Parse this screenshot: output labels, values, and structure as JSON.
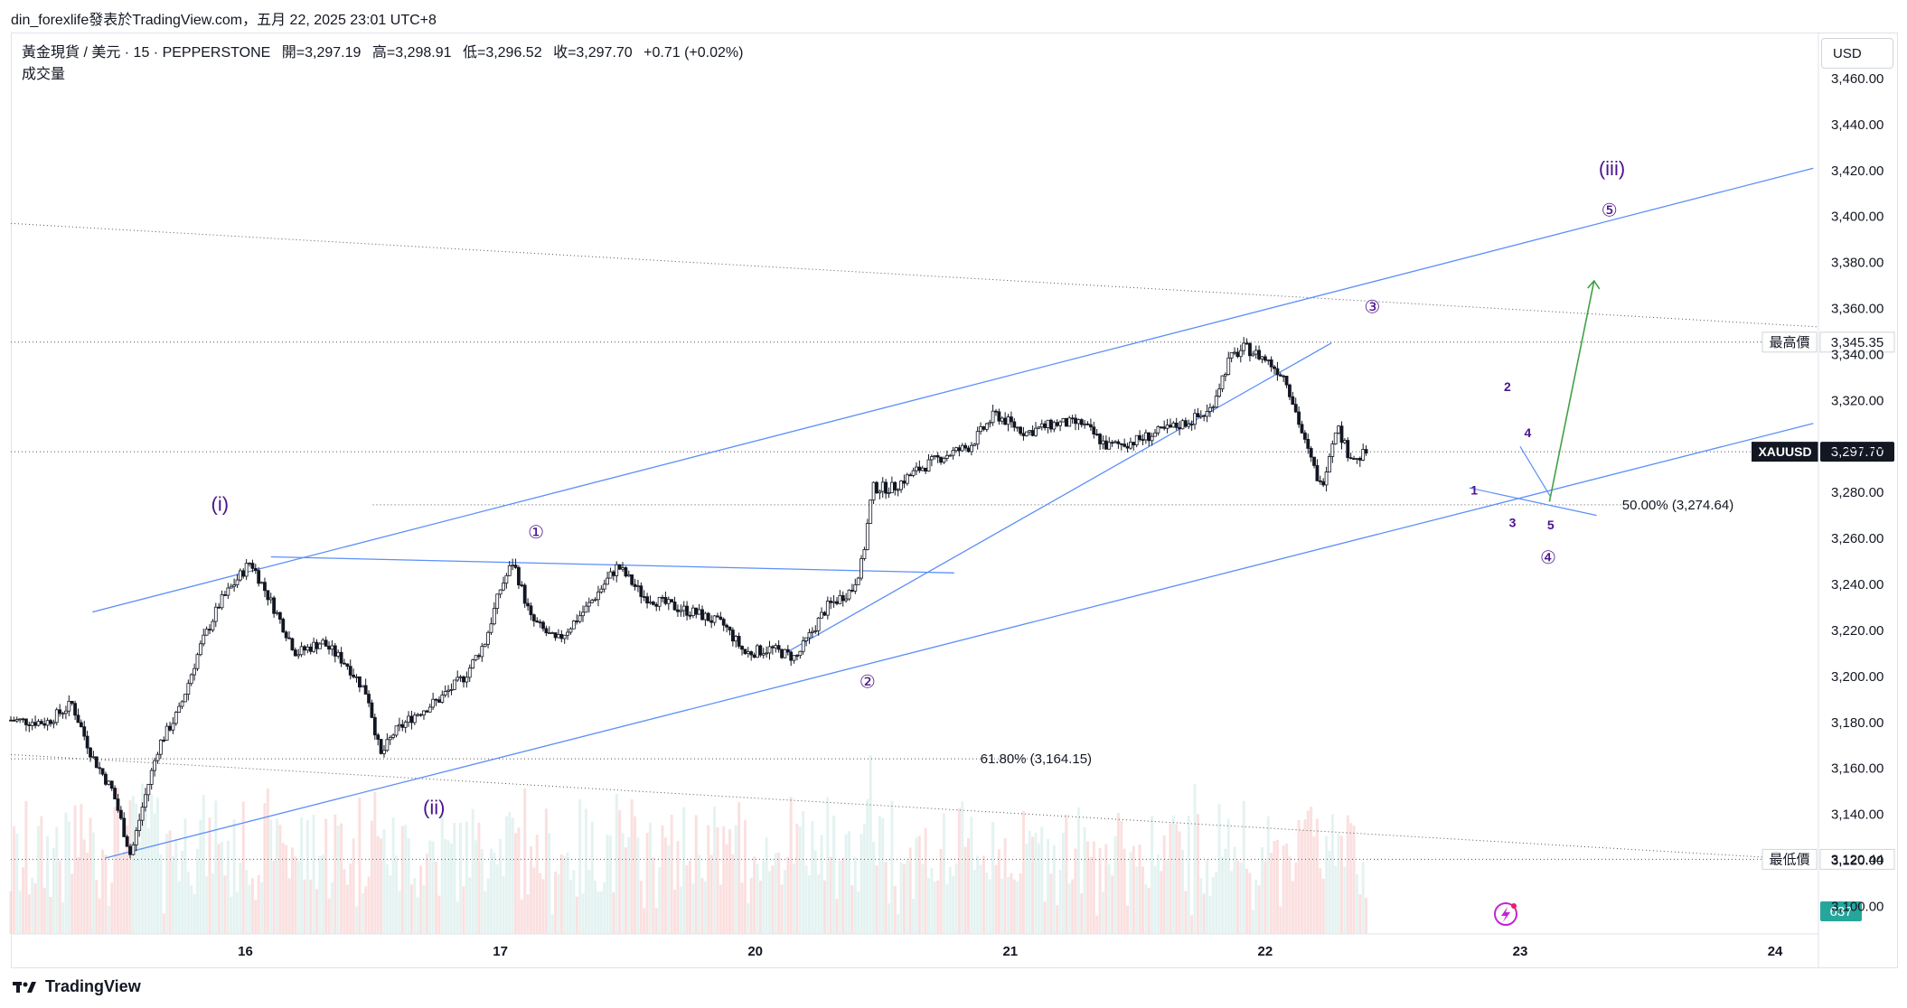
{
  "header": {
    "attribution": "din_forexlife發表於TradingView.com，五月 22, 2025 23:01 UTC+8"
  },
  "legend": {
    "symbol": "黃金現貨 / 美元 · 15 · PEPPERSTONE",
    "open": "開=3,297.19",
    "high": "高=3,298.91",
    "low": "低=3,296.52",
    "close": "收=3,297.70",
    "change": "+0.71 (+0.02%)",
    "volume_label": "成交量"
  },
  "currency": "USD",
  "footer": {
    "brand": "TradingView"
  },
  "colors": {
    "up": "#26a69a",
    "down": "#131722",
    "trendline": "#5b8ff9",
    "wave_label": "#4a148c",
    "target_arrow": "#43a047",
    "volume": "#f7c6c6"
  },
  "chart_data": {
    "type": "candlestick",
    "title": "黃金現貨 / 美元 · 15 · PEPPERSTONE",
    "ylim": [
      3088,
      3480
    ],
    "y_ticks": [
      3100,
      3120,
      3140,
      3160,
      3180,
      3200,
      3220,
      3240,
      3260,
      3280,
      3300,
      3320,
      3340,
      3360,
      3380,
      3400,
      3420,
      3440,
      3460
    ],
    "x_ticks": [
      "16",
      "17",
      "20",
      "21",
      "22",
      "23",
      "24"
    ],
    "x_tick_positions": [
      0.5,
      1.5,
      2.5,
      3.5,
      4.5,
      5.5,
      6.5
    ],
    "xlim": [
      -0.42,
      6.67
    ],
    "price_path": [
      [
        -0.42,
        3181
      ],
      [
        -0.28,
        3180
      ],
      [
        -0.18,
        3188
      ],
      [
        -0.1,
        3165
      ],
      [
        -0.02,
        3150
      ],
      [
        0.05,
        3122
      ],
      [
        0.1,
        3145
      ],
      [
        0.16,
        3170
      ],
      [
        0.24,
        3185
      ],
      [
        0.32,
        3212
      ],
      [
        0.4,
        3232
      ],
      [
        0.52,
        3250
      ],
      [
        0.62,
        3228
      ],
      [
        0.7,
        3210
      ],
      [
        0.8,
        3215
      ],
      [
        0.9,
        3205
      ],
      [
        0.98,
        3192
      ],
      [
        1.03,
        3165
      ],
      [
        1.08,
        3175
      ],
      [
        1.16,
        3183
      ],
      [
        1.26,
        3190
      ],
      [
        1.36,
        3200
      ],
      [
        1.44,
        3215
      ],
      [
        1.5,
        3238
      ],
      [
        1.55,
        3250
      ],
      [
        1.62,
        3225
      ],
      [
        1.72,
        3215
      ],
      [
        1.84,
        3230
      ],
      [
        1.96,
        3248
      ],
      [
        2.06,
        3235
      ],
      [
        2.16,
        3231
      ],
      [
        2.28,
        3227
      ],
      [
        2.38,
        3222
      ],
      [
        2.46,
        3210
      ],
      [
        2.56,
        3212
      ],
      [
        2.66,
        3208
      ],
      [
        2.78,
        3230
      ],
      [
        2.88,
        3238
      ],
      [
        2.92,
        3250
      ],
      [
        2.96,
        3282
      ],
      [
        3.04,
        3282
      ],
      [
        3.14,
        3290
      ],
      [
        3.24,
        3296
      ],
      [
        3.34,
        3300
      ],
      [
        3.44,
        3314
      ],
      [
        3.56,
        3306
      ],
      [
        3.68,
        3310
      ],
      [
        3.78,
        3310
      ],
      [
        3.88,
        3300
      ],
      [
        3.98,
        3302
      ],
      [
        4.08,
        3306
      ],
      [
        4.18,
        3310
      ],
      [
        4.28,
        3315
      ],
      [
        4.36,
        3338
      ],
      [
        4.42,
        3343
      ],
      [
        4.5,
        3338
      ],
      [
        4.58,
        3330
      ],
      [
        4.66,
        3300
      ],
      [
        4.72,
        3282
      ],
      [
        4.78,
        3310
      ],
      [
        4.82,
        3298
      ],
      [
        4.86,
        3294
      ],
      [
        4.9,
        3298
      ]
    ],
    "volume_max": 637,
    "levels": [
      {
        "label": "最高價",
        "value": 3345.35,
        "text": "3,345.35"
      },
      {
        "label": "最低價",
        "value": 3120.44,
        "text": "3,120.44"
      },
      {
        "label": "XAUUSD",
        "value": 3297.7,
        "text": "3,297.70"
      }
    ],
    "volume_badge": "637",
    "fib_levels": [
      {
        "text": "50.00% (3,274.64)",
        "value": 3274.64
      },
      {
        "text": "61.80% (3,164.15)",
        "value": 3164.15
      }
    ],
    "trendlines": [
      {
        "name": "channel-upper",
        "p1": [
          -0.1,
          3228
        ],
        "p2": [
          6.65,
          3421
        ]
      },
      {
        "name": "channel-lower",
        "p1": [
          -0.05,
          3121
        ],
        "p2": [
          6.65,
          3310
        ]
      },
      {
        "name": "resistance-flat",
        "p1": [
          0.6,
          3252
        ],
        "p2": [
          3.28,
          3245
        ]
      },
      {
        "name": "wave4-support",
        "p1": [
          2.6,
          3209
        ],
        "p2": [
          4.76,
          3345
        ]
      },
      {
        "name": "dotted-upper",
        "p1": [
          -0.42,
          3397
        ],
        "p2": [
          6.67,
          3352
        ]
      },
      {
        "name": "dotted-lower",
        "p1": [
          -0.42,
          3166
        ],
        "p2": [
          6.67,
          3120
        ]
      }
    ],
    "wave_labels": [
      {
        "text": "(i)",
        "x": 0.4,
        "y": 3272
      },
      {
        "text": "(ii)",
        "x": 1.24,
        "y": 3140
      },
      {
        "text": "(iii)",
        "x": 5.86,
        "y": 3418
      },
      {
        "text": "①",
        "x": 1.64,
        "y": 3260
      },
      {
        "text": "②",
        "x": 2.94,
        "y": 3195
      },
      {
        "text": "③",
        "x": 4.92,
        "y": 3358
      },
      {
        "text": "④",
        "x": 5.61,
        "y": 3249
      },
      {
        "text": "⑤",
        "x": 5.85,
        "y": 3400
      },
      {
        "text": "1",
        "x": 5.32,
        "y": 3279
      },
      {
        "text": "2",
        "x": 5.45,
        "y": 3324
      },
      {
        "text": "3",
        "x": 5.47,
        "y": 3265
      },
      {
        "text": "4",
        "x": 5.53,
        "y": 3304
      },
      {
        "text": "5",
        "x": 5.62,
        "y": 3264
      }
    ],
    "target_arrow": {
      "from": [
        5.615,
        3276
      ],
      "to": [
        5.79,
        3372
      ]
    }
  }
}
